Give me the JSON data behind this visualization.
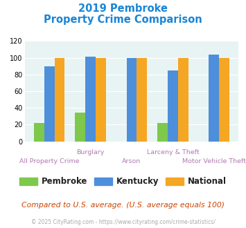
{
  "title_line1": "2019 Pembroke",
  "title_line2": "Property Crime Comparison",
  "pembroke": [
    22,
    34,
    0,
    22,
    0
  ],
  "kentucky": [
    90,
    101,
    100,
    85,
    104
  ],
  "national": [
    100,
    100,
    100,
    100,
    100
  ],
  "color_pembroke": "#7ec84c",
  "color_kentucky": "#4d8fda",
  "color_national": "#f5a623",
  "color_bg": "#e8f4f4",
  "color_title": "#1a85d6",
  "color_xlabel_top": "#b07ab0",
  "color_xlabel_bot": "#b07ab0",
  "ylim": [
    0,
    120
  ],
  "yticks": [
    0,
    20,
    40,
    60,
    80,
    100,
    120
  ],
  "top_labels": [
    "",
    "Burglary",
    "",
    "Larceny & Theft",
    ""
  ],
  "bot_labels": [
    "All Property Crime",
    "",
    "Arson",
    "",
    "Motor Vehicle Theft"
  ],
  "footer_text": "Compared to U.S. average. (U.S. average equals 100)",
  "copyright_text": "© 2025 CityRating.com - https://www.cityrating.com/crime-statistics/",
  "legend_labels": [
    "Pembroke",
    "Kentucky",
    "National"
  ],
  "bar_width": 0.25
}
